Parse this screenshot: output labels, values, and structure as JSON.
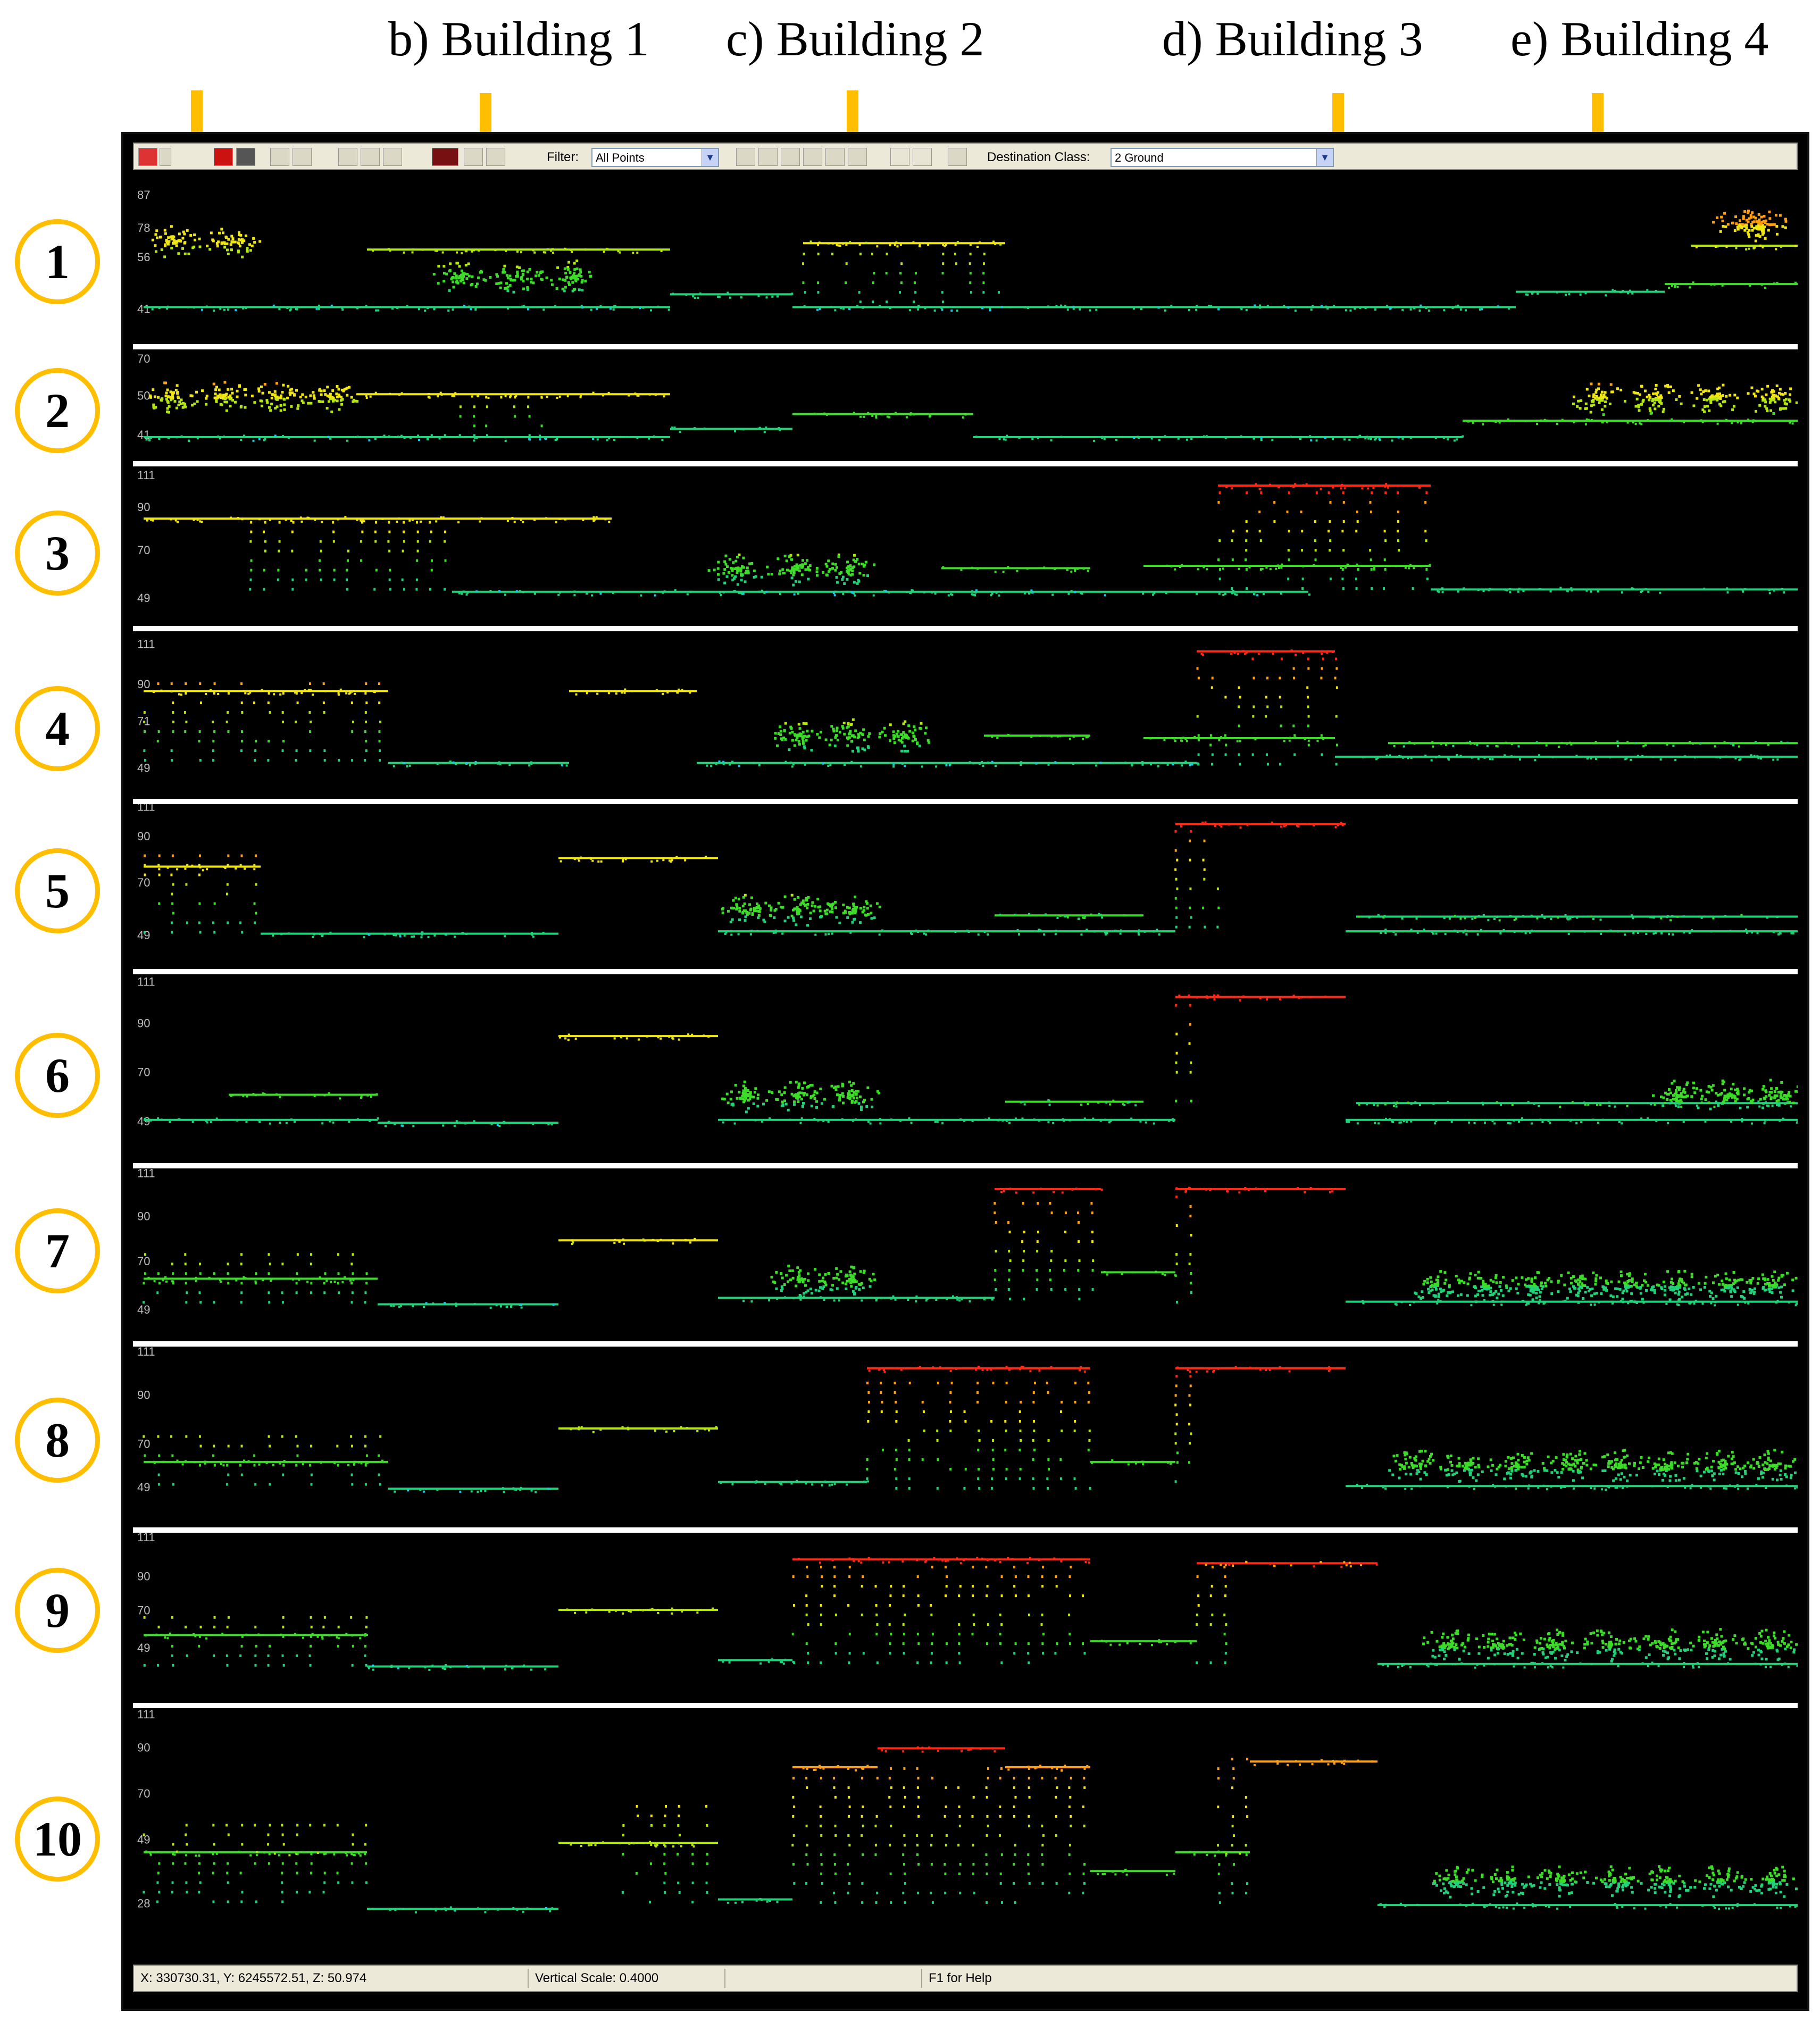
{
  "labels": {
    "building1": "b) Building 1",
    "building2": "c) Building 2",
    "building3": "d) Building 3",
    "building4": "e) Building 4"
  },
  "toolbar": {
    "filter_label": "Filter:",
    "filter_value": "All Points",
    "destination_label": "Destination Class:",
    "destination_value": "2  Ground"
  },
  "profiles": [
    {
      "number": "1",
      "ticks": [
        "87",
        "78",
        "56",
        "41"
      ]
    },
    {
      "number": "2",
      "ticks": [
        "70",
        "50",
        "41"
      ]
    },
    {
      "number": "3",
      "ticks": [
        "111",
        "90",
        "70",
        "49"
      ]
    },
    {
      "number": "4",
      "ticks": [
        "111",
        "90",
        "71",
        "49"
      ]
    },
    {
      "number": "5",
      "ticks": [
        "111",
        "90",
        "70",
        "49"
      ]
    },
    {
      "number": "6",
      "ticks": [
        "111",
        "90",
        "70",
        "49"
      ]
    },
    {
      "number": "7",
      "ticks": [
        "111",
        "90",
        "70",
        "49"
      ]
    },
    {
      "number": "8",
      "ticks": [
        "111",
        "90",
        "70",
        "49"
      ]
    },
    {
      "number": "9",
      "ticks": [
        "111",
        "90",
        "70",
        "49"
      ]
    },
    {
      "number": "10",
      "ticks": [
        "111",
        "90",
        "70",
        "49",
        "28"
      ]
    }
  ],
  "status": {
    "coordinates": "X: 330730.31, Y: 6245572.51, Z: 50.974",
    "vertical_scale": "Vertical Scale: 0.4000",
    "help": "F1 for Help"
  },
  "colors": {
    "arrow": "#FFBF00",
    "badge_ring": "#FFBF00",
    "height_ramp": [
      "#19C8E6",
      "#22D27A",
      "#3CDC28",
      "#B4E614",
      "#F0E614",
      "#FFA014",
      "#FF2814"
    ]
  }
}
